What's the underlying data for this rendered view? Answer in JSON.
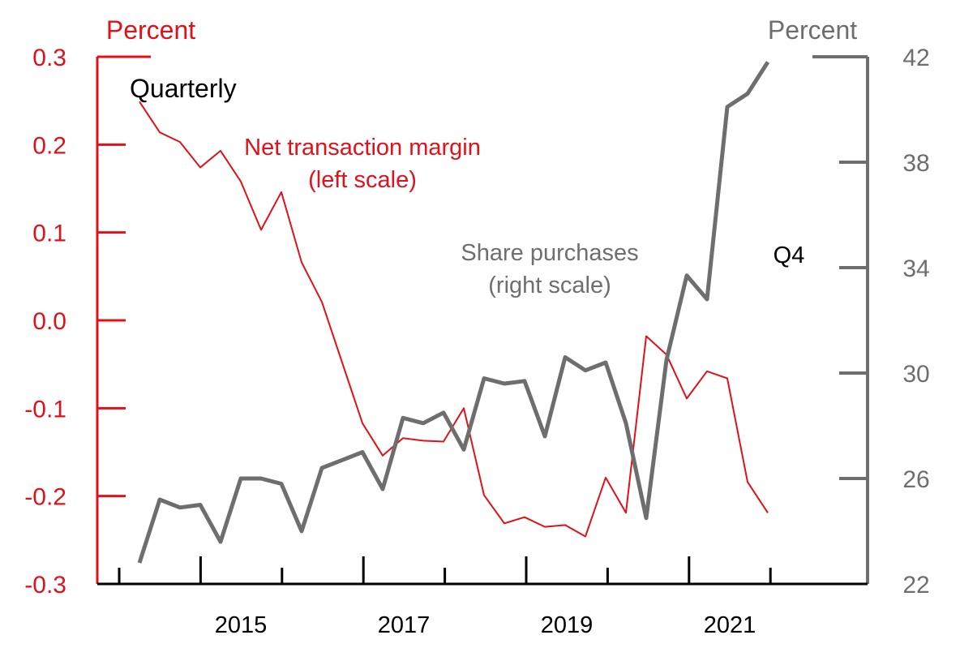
{
  "chart_data": {
    "type": "line",
    "frequency_label": "Quarterly",
    "last_point_label": "Q4",
    "left_axis": {
      "unit_label": "Percent",
      "ylim": [
        -0.3,
        0.3
      ],
      "ticks": [
        0.3,
        0.2,
        0.1,
        0.0,
        -0.1,
        -0.2,
        -0.3
      ],
      "tick_labels": [
        "0.3",
        "0.2",
        "0.1",
        "0.0",
        "-0.1",
        "-0.2",
        "-0.3"
      ],
      "color": "#e0111b"
    },
    "right_axis": {
      "unit_label": "Percent",
      "ylim": [
        22,
        42
      ],
      "ticks": [
        42,
        38,
        34,
        30,
        26,
        22
      ],
      "tick_labels": [
        "42",
        "38",
        "34",
        "30",
        "26",
        "22"
      ],
      "color": "#6e6e6e"
    },
    "x_axis": {
      "range": [
        "2014",
        "2022:Q4"
      ],
      "tick_labels": [
        "2015",
        "2017",
        "2019",
        "2021"
      ]
    },
    "x": [
      "2014:Q1",
      "2014:Q2",
      "2014:Q3",
      "2014:Q4",
      "2015:Q1",
      "2015:Q2",
      "2015:Q3",
      "2015:Q4",
      "2016:Q1",
      "2016:Q2",
      "2016:Q3",
      "2016:Q4",
      "2017:Q1",
      "2017:Q2",
      "2017:Q3",
      "2017:Q4",
      "2018:Q1",
      "2018:Q2",
      "2018:Q3",
      "2018:Q4",
      "2019:Q1",
      "2019:Q2",
      "2019:Q3",
      "2019:Q4",
      "2020:Q1",
      "2020:Q2",
      "2020:Q3",
      "2020:Q4",
      "2021:Q1",
      "2021:Q2",
      "2021:Q3",
      "2021:Q4"
    ],
    "series": [
      {
        "name": "Net transaction margin",
        "name_line2": "(left scale)",
        "axis": "left",
        "color": "#e0111b",
        "values": [
          0.249,
          0.214,
          0.203,
          0.174,
          0.193,
          0.158,
          0.103,
          0.146,
          0.066,
          0.021,
          -0.048,
          -0.117,
          -0.154,
          -0.134,
          -0.137,
          -0.138,
          -0.1,
          -0.199,
          -0.231,
          -0.224,
          -0.235,
          -0.233,
          -0.246,
          -0.179,
          -0.219,
          -0.018,
          -0.039,
          -0.089,
          -0.058,
          -0.066,
          -0.184,
          -0.219
        ]
      },
      {
        "name": "Share purchases",
        "name_line2": "(right scale)",
        "axis": "right",
        "color": "#6e6e6e",
        "values": [
          22.8,
          25.2,
          24.9,
          25.0,
          23.6,
          26.0,
          26.0,
          25.8,
          24.0,
          26.4,
          26.7,
          27.0,
          25.6,
          28.3,
          28.1,
          28.5,
          27.1,
          29.8,
          29.6,
          29.7,
          27.6,
          30.6,
          30.1,
          30.4,
          28.1,
          24.5,
          30.5,
          33.7,
          32.8,
          40.1,
          40.6,
          41.8
        ]
      }
    ]
  }
}
